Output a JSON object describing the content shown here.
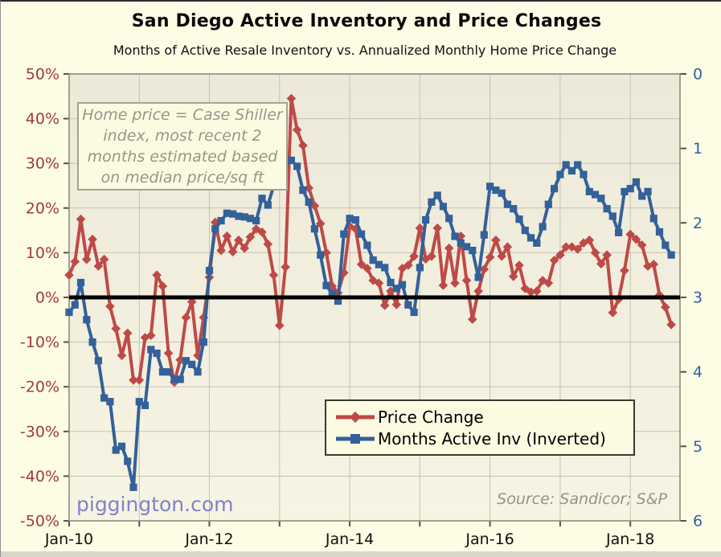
{
  "title": "San Diego Active Inventory and Price Changes",
  "subtitle": "Months of Active Resale Inventory vs. Annualized Monthly Home Price Change",
  "annotation": {
    "lines": [
      "Home price = Case Shiller",
      "index, most recent 2",
      "months estimated based",
      "on median price/sq ft"
    ]
  },
  "watermark": "piggington.com",
  "source": "Source: Sandicor; S&P",
  "legend": {
    "items": [
      {
        "key": "price-change",
        "label": "Price Change",
        "color": "#BE4A47",
        "marker": "diamond"
      },
      {
        "key": "months-active-inv",
        "label": "Months Active Inv (Inverted)",
        "color": "#336199",
        "marker": "square"
      }
    ]
  },
  "colors": {
    "page_bg": "#FDFCE5",
    "plot_bg_top": "#EDE9D8",
    "plot_bg_bottom": "#F7F4E4",
    "grid": "#C6C2B2",
    "frame": "#8F8C7C",
    "tick": "#55544a",
    "left_axis_text": "#A03B39",
    "right_axis_text": "#2F639F",
    "x_axis_text": "#111111",
    "zero_line": "#000000",
    "price_series": "#BE4A47",
    "inventory_series": "#336199"
  },
  "chart_data": {
    "type": "line",
    "title": "San Diego Active Inventory and Price Changes",
    "subtitle": "Months of Active Resale Inventory vs. Annualized Monthly Home Price Change",
    "x_frequency": "monthly",
    "x_start": "2010-01",
    "x_end": "2018-08",
    "x_tick_labels": [
      "Jan-10",
      "Jan-12",
      "Jan-14",
      "Jan-16",
      "Jan-18"
    ],
    "x_tick_year_positions": [
      0,
      2,
      4,
      6,
      8
    ],
    "grid": true,
    "zero_line": true,
    "legend_position": "bottom-center-inside",
    "left_axis": {
      "unit": "%",
      "range": [
        -50,
        50
      ],
      "ticks": [
        "50%",
        "40%",
        "30%",
        "20%",
        "10%",
        "0%",
        "-10%",
        "-20%",
        "-30%",
        "-40%",
        "-50%"
      ]
    },
    "right_axis": {
      "unit": "months",
      "inverted": true,
      "range_top_to_bottom": [
        0,
        6
      ],
      "ticks": [
        "0",
        "1",
        "2",
        "3",
        "4",
        "5",
        "6"
      ]
    },
    "series": [
      {
        "key": "price-change",
        "name": "Price Change",
        "axis": "left",
        "unit": "percent",
        "color": "#BE4A47",
        "marker": "diamond",
        "values": [
          5,
          8,
          17.5,
          8.5,
          13,
          7,
          8.5,
          -2,
          -7,
          -13,
          -8,
          -18.5,
          -18.5,
          -9,
          -8.5,
          5,
          2.5,
          -12.5,
          -19,
          -14,
          -4.5,
          -1,
          -13,
          -4.5,
          4.5,
          16.8,
          10.5,
          13.7,
          10.2,
          12.8,
          11,
          13.5,
          15.3,
          14.6,
          11.9,
          5,
          -6.3,
          6.8,
          44.5,
          37.5,
          34,
          24.5,
          20.5,
          16.5,
          10,
          2.5,
          1,
          5.5,
          15.9,
          15.3,
          7.4,
          6.5,
          3.8,
          3.2,
          -1.8,
          1.4,
          -1.6,
          6.5,
          7.2,
          9.2,
          15.5,
          8.6,
          9.2,
          15.5,
          2.7,
          11,
          3.2,
          13.7,
          3.8,
          -4.9,
          1.4,
          6.3,
          9,
          12.8,
          9.2,
          11.3,
          4.7,
          7.2,
          2,
          1.2,
          1.4,
          3.8,
          3.2,
          8.3,
          9.5,
          11.3,
          11.3,
          10.8,
          12.2,
          12.8,
          10,
          7.5,
          9.5,
          -3.4,
          -0.4,
          6,
          14.1,
          13,
          11.7,
          7,
          7.4,
          0.5,
          -2.2,
          -6.1
        ]
      },
      {
        "key": "months-active-inv",
        "name": "Months Active Inv (Inverted)",
        "axis": "right",
        "unit": "months",
        "color": "#336199",
        "marker": "square",
        "values": [
          3.2,
          3.1,
          2.8,
          3.3,
          3.6,
          3.85,
          4.35,
          4.4,
          5.05,
          5,
          5.2,
          5.55,
          4.4,
          4.45,
          3.7,
          3.75,
          4,
          4,
          4.1,
          4.1,
          3.85,
          3.9,
          4,
          3.6,
          2.64,
          2.08,
          1.97,
          1.87,
          1.88,
          1.91,
          1.92,
          1.94,
          1.97,
          1.67,
          1.76,
          1.5,
          1.4,
          1.18,
          1.16,
          1.24,
          1.56,
          1.72,
          2.08,
          2.43,
          2.84,
          2.95,
          3.05,
          2.15,
          1.94,
          1.96,
          2.15,
          2.3,
          2.5,
          2.56,
          2.6,
          2.8,
          2.88,
          2.83,
          3.1,
          3.2,
          2.6,
          1.96,
          1.72,
          1.63,
          1.78,
          1.94,
          2.18,
          2.27,
          2.32,
          2.37,
          2.73,
          2.16,
          1.51,
          1.56,
          1.6,
          1.75,
          1.81,
          1.95,
          2.1,
          2.2,
          2.27,
          2.05,
          1.75,
          1.54,
          1.35,
          1.22,
          1.3,
          1.22,
          1.35,
          1.58,
          1.62,
          1.67,
          1.81,
          1.91,
          2.13,
          1.58,
          1.54,
          1.45,
          1.64,
          1.58,
          1.94,
          2.12,
          2.3,
          2.43
        ]
      }
    ]
  }
}
